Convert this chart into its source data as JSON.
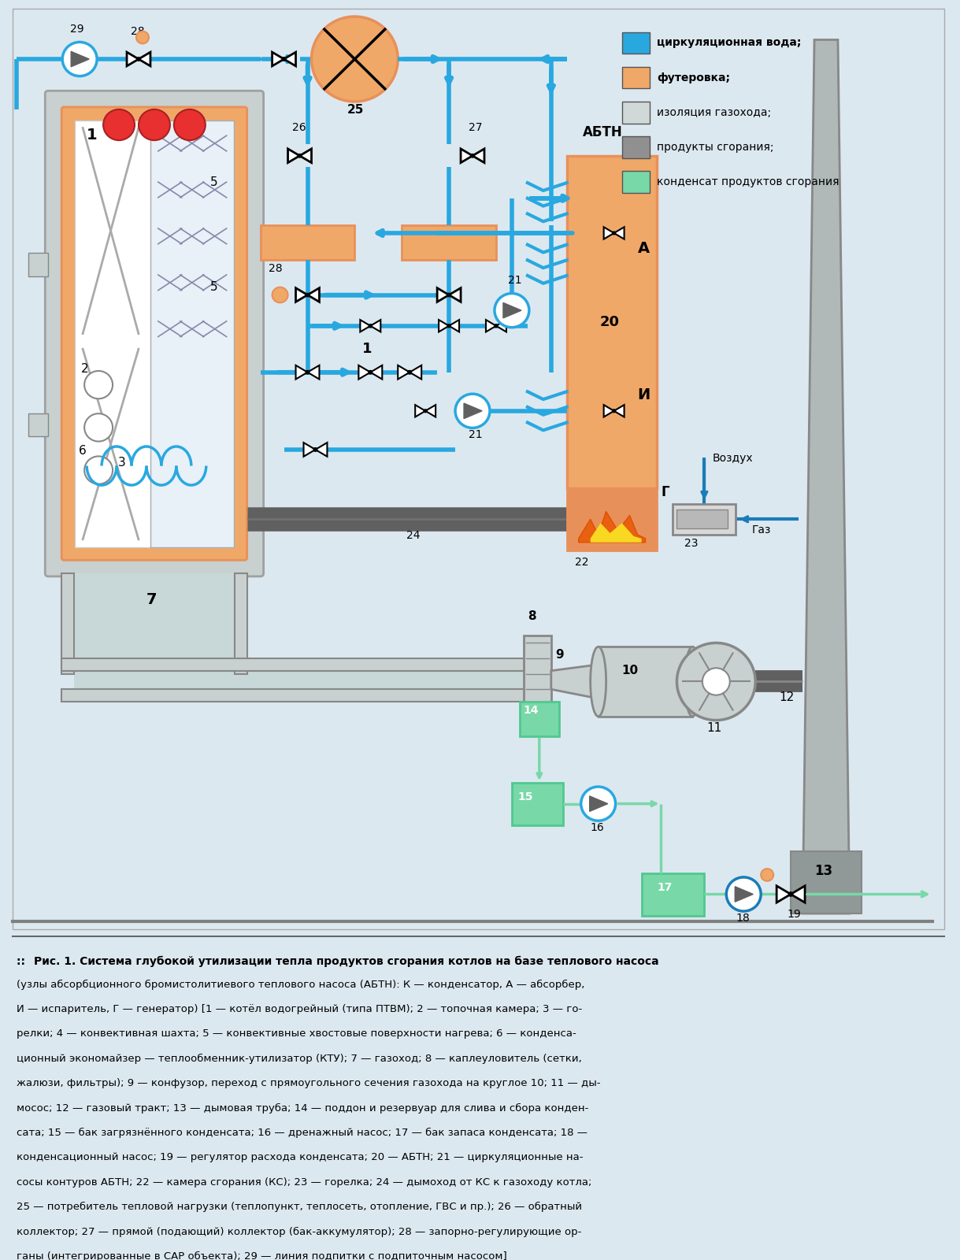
{
  "background_color": "#dce8f0",
  "legend_items": [
    {
      "label": "циркуляционная вода;",
      "color": "#29a8e0"
    },
    {
      "label": "футеровка;",
      "color": "#f0a868"
    },
    {
      "label": "изоляция газохода;",
      "color": "#d0d8d8"
    },
    {
      "label": "продукты сгорания;",
      "color": "#909090"
    },
    {
      "label": "конденсат продуктов сгорания",
      "color": "#78d8a8"
    }
  ],
  "caption_bold": "Рис. 1. Система глубокой утилизации тепла продуктов сгорания котлов на базе теплового насоса",
  "caption_rest": "(узлы абсорбционного бромистолитиевого теплового насоса (АБТН): К — конденсатор, А — абсорбер,\nИ — испаритель, Г — генератор) [1 — котёл водогрейный (типа ПТВМ); 2 — топочная камера; 3 — го-\nрелки; 4 — конвективная шахта; 5 — конвективные хвостовые поверхности нагрева; 6 — конденса-\nционный экономайзер — теплообменник-утилизатор (КТУ); 7 — газоход; 8 — каплеуловитель (сетки,\nжалюзи, фильтры); 9 — конфузор, переход с прямоугольного сечения газохода на круглое 10; 11 — ды-\nмосос; 12 — газовый тракт; 13 — дымовая труба; 14 — поддон и резервуар для слива и сбора конден-\nсата; 15 — бак загрязнённого конденсата; 16 — дренажный насос; 17 — бак запаса конденсата; 18 —\nконденсационный насос; 19 — регулятор расхода конденсата; 20 — АБТН; 21 — циркуляционные на-\nсосы контуров АБТН; 22 — камера сгорания (КС); 23 — горелка; 24 — дымоход от КС к газоходу котла;\n25 — потребитель тепловой нагрузки (теплопункт, теплосеть, отопление, ГВС и пр.); 26 — обратный\nколлектор; 27 — прямой (подающий) коллектор (бак-аккумулятор); 28 — запорно-регулирующие ор-\nганы (интегрированные в САР объекта); 29 — линия подпитки с подпиточным насосом]"
}
